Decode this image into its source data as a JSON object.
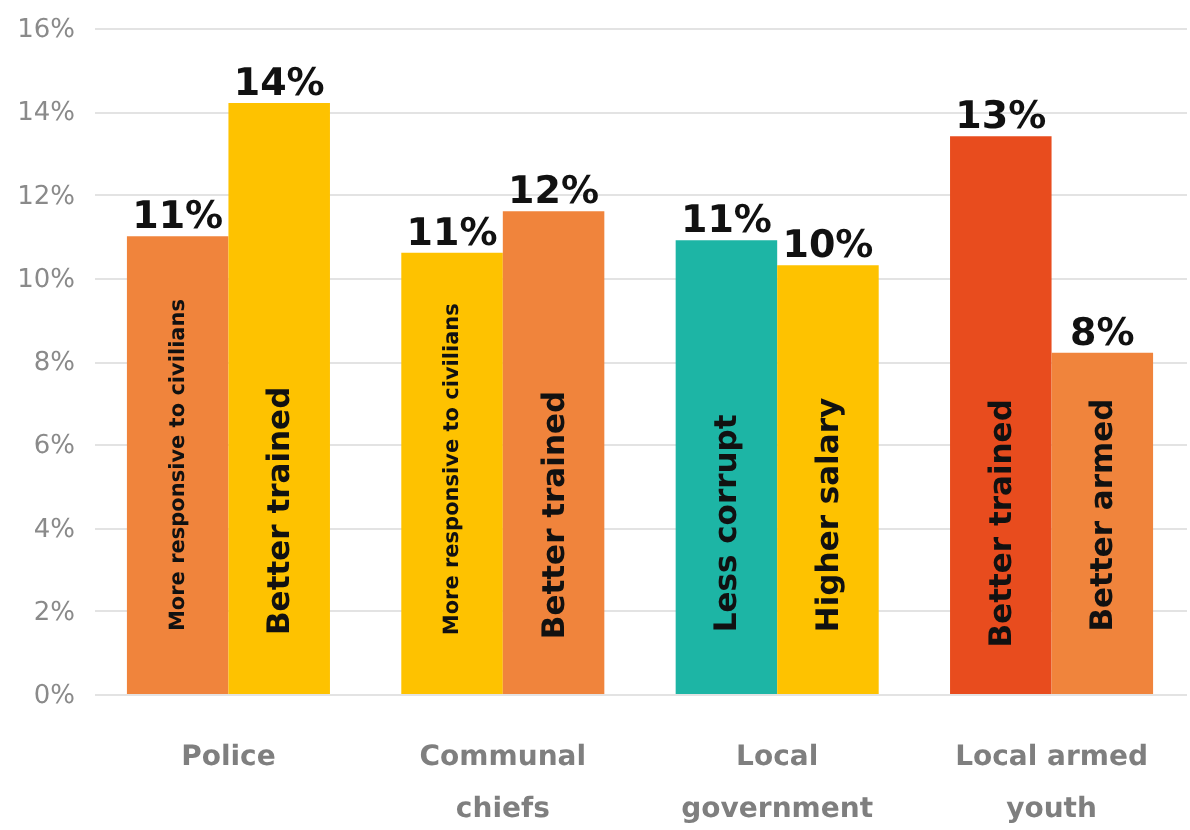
{
  "chart_data": {
    "type": "bar",
    "categories": [
      "Police",
      "Communal chiefs",
      "Local government",
      "Local armed youth"
    ],
    "series": [
      {
        "colors": [
          "#f0843c",
          "#fec200",
          "#1db5a5",
          "#e84c1e"
        ],
        "values": [
          11.0,
          10.6,
          10.9,
          13.4
        ],
        "value_labels": [
          "11%",
          "11%",
          "11%",
          "13%"
        ]
      },
      {
        "colors": [
          "#fec200",
          "#f0843c",
          "#fec200",
          "#f0843c"
        ],
        "values": [
          14.2,
          11.6,
          10.3,
          8.2
        ],
        "value_labels": [
          "14%",
          "12%",
          "10%",
          "8%"
        ]
      }
    ],
    "ylim": [
      0,
      16
    ],
    "yticks": [
      {
        "value": 0,
        "label": "0%"
      },
      {
        "value": 2,
        "label": "2%"
      },
      {
        "value": 4,
        "label": "4%"
      },
      {
        "value": 6,
        "label": "6%"
      },
      {
        "value": 8,
        "label": "8%"
      },
      {
        "value": 10,
        "label": "10%"
      },
      {
        "value": 12,
        "label": "12%"
      },
      {
        "value": 14,
        "label": "14%"
      },
      {
        "value": 16,
        "label": "16%"
      }
    ],
    "grid": "y",
    "annotations": [
      {
        "text": "More responsive to civilians",
        "x": "Police",
        "y": 5.5
      },
      {
        "text": "Better trained",
        "x": "Police",
        "y": 4.4
      },
      {
        "text": "More responsive to civilians",
        "x": "Communal chiefs",
        "y": 5.4
      },
      {
        "text": "Better trained",
        "x": "Communal chiefs",
        "y": 4.3
      },
      {
        "text": "Less corrupt",
        "x": "Local government",
        "y": 4.1
      },
      {
        "text": "Higher salary",
        "x": "Local government",
        "y": 4.3
      },
      {
        "text": "Better trained",
        "x": "Local armed youth",
        "y": 4.1
      },
      {
        "text": "Better armed",
        "x": "Local armed youth",
        "y": 4.3
      }
    ]
  }
}
